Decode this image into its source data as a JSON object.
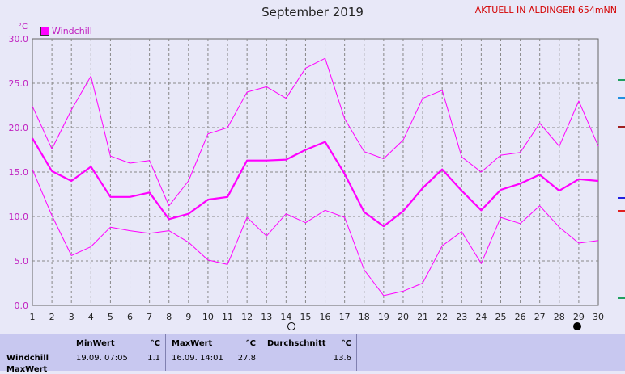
{
  "header": {
    "title": "September 2019",
    "current_label": "AKTUELL IN ALDINGEN 654mNN",
    "unit": "°C"
  },
  "legend": {
    "label": "Windchill",
    "color": "#ff00ff"
  },
  "chart_data": {
    "type": "line",
    "title": "September 2019",
    "ylabel": "°C",
    "xlabel": "",
    "ylim": [
      0,
      30
    ],
    "xlim": [
      1,
      30
    ],
    "grid": true,
    "x": [
      1,
      2,
      3,
      4,
      5,
      6,
      7,
      8,
      9,
      10,
      11,
      12,
      13,
      14,
      15,
      16,
      17,
      18,
      19,
      20,
      21,
      22,
      23,
      24,
      25,
      26,
      27,
      28,
      29,
      30
    ],
    "x_ticks": [
      "1",
      "2",
      "3",
      "4",
      "5",
      "6",
      "7",
      "8",
      "9",
      "10",
      "11",
      "12",
      "13",
      "14",
      "15",
      "16",
      "17",
      "18",
      "19",
      "20",
      "21",
      "22",
      "23",
      "24",
      "25",
      "26",
      "27",
      "28",
      "29",
      "30"
    ],
    "y_ticks": [
      "0.0",
      "5.0",
      "10.0",
      "15.0",
      "20.0",
      "25.0",
      "30.0"
    ],
    "series": [
      {
        "name": "Windchill",
        "role": "max",
        "color": "#ff00ff",
        "values": [
          22.4,
          17.6,
          22.0,
          25.8,
          16.8,
          16.0,
          16.3,
          11.2,
          14.0,
          19.3,
          20.0,
          24.0,
          24.6,
          23.3,
          26.7,
          27.8,
          21.0,
          17.3,
          16.5,
          18.6,
          23.3,
          24.2,
          16.7,
          15.0,
          16.9,
          17.2,
          20.5,
          17.9,
          23.0,
          17.9
        ]
      },
      {
        "name": "Windchill",
        "role": "mean",
        "color": "#ff00ff",
        "values": [
          18.8,
          15.1,
          14.0,
          15.6,
          12.2,
          12.2,
          12.7,
          9.7,
          10.3,
          11.9,
          12.2,
          16.3,
          16.3,
          16.4,
          17.5,
          18.4,
          14.8,
          10.5,
          8.9,
          10.6,
          13.2,
          15.3,
          12.9,
          10.7,
          13.0,
          13.7,
          14.7,
          12.9,
          14.2,
          14.0
        ]
      },
      {
        "name": "Windchill",
        "role": "min",
        "color": "#ff00ff",
        "values": [
          15.3,
          10.1,
          5.6,
          6.6,
          8.8,
          8.4,
          8.1,
          8.4,
          7.1,
          5.1,
          4.6,
          9.9,
          7.8,
          10.3,
          9.3,
          10.7,
          9.9,
          4.0,
          1.1,
          1.6,
          2.5,
          6.7,
          8.3,
          4.7,
          9.9,
          9.2,
          11.2,
          8.8,
          7.0,
          7.3
        ]
      }
    ],
    "moon_phases": [
      {
        "day": 14,
        "phase": "full"
      },
      {
        "day": 29,
        "phase": "new"
      }
    ]
  },
  "stats": {
    "row_label": "Windchill",
    "row_label_2": "MaxWert",
    "min_header": "MinWert",
    "max_header": "MaxWert",
    "avg_header": "Durchschnitt",
    "unit_header": "°C",
    "min_date": "19.09.  07:05",
    "min_value": "1.1",
    "max_date": "16.09.  14:01",
    "max_value": "27.8",
    "avg_value": "13.6"
  },
  "colors": {
    "background": "#e8e8f8",
    "series": "#ff00ff",
    "grid": "#888888",
    "stats_bg": "#c8c8f0"
  }
}
